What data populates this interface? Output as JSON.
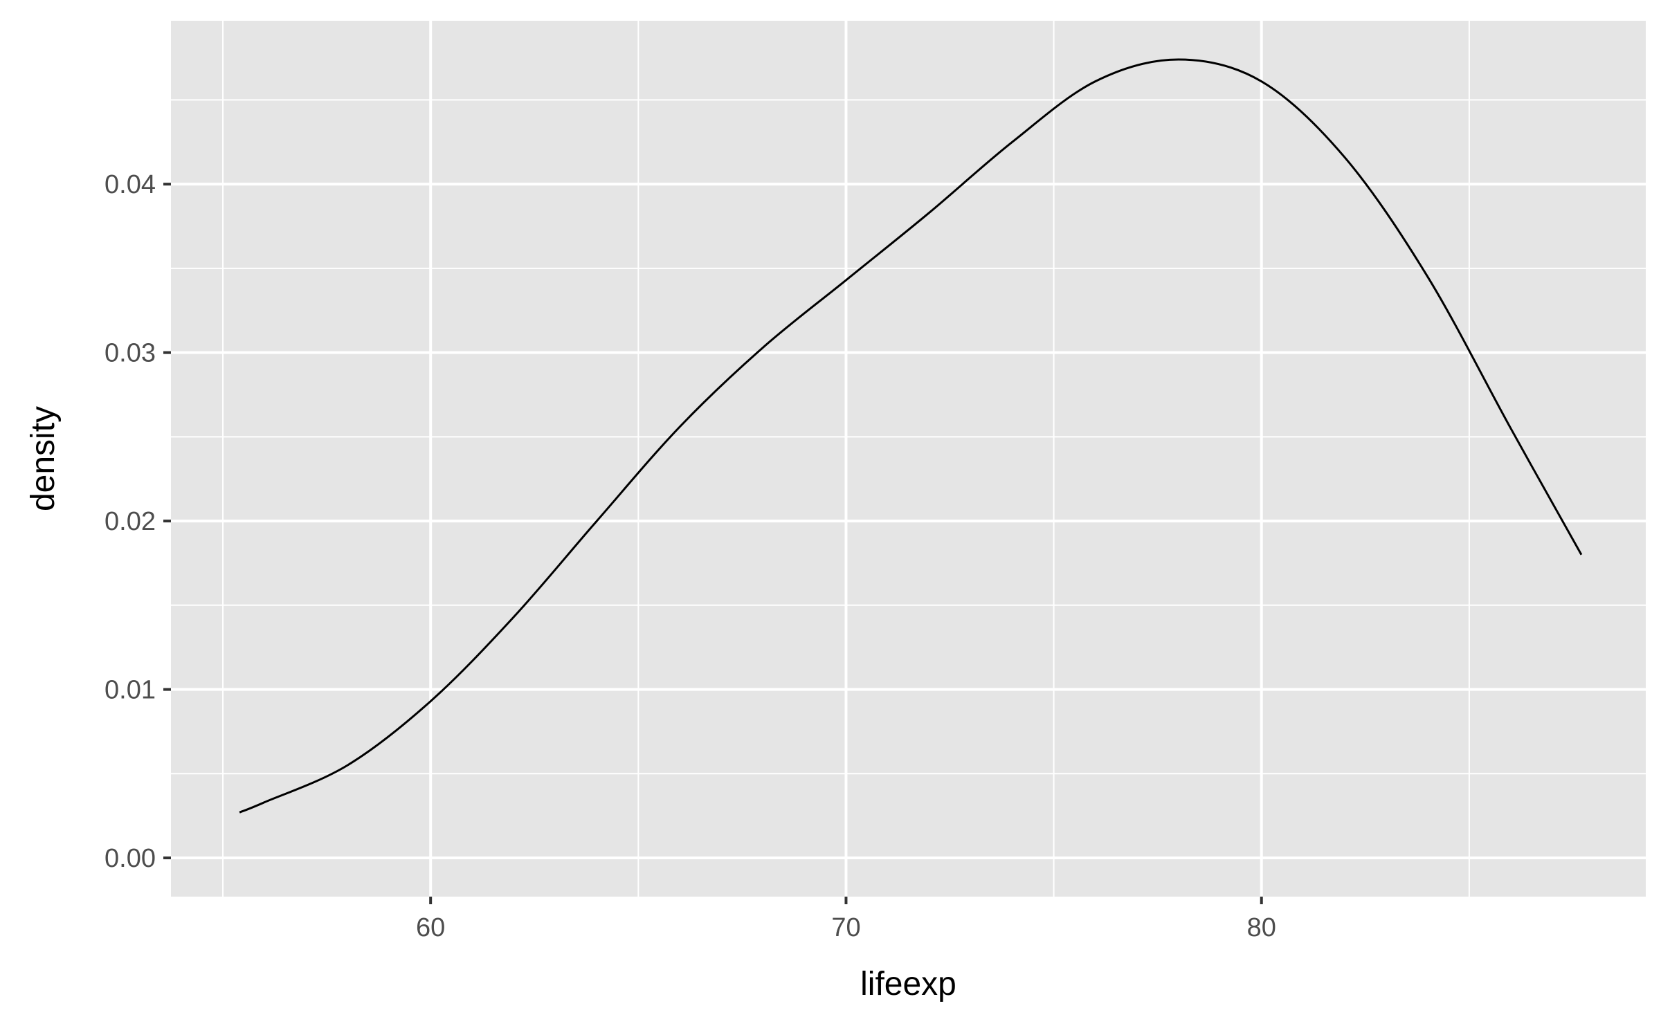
{
  "chart_data": {
    "type": "line",
    "title": "",
    "xlabel": "lifeexp",
    "ylabel": "density",
    "xlim": [
      53.75,
      89.25
    ],
    "ylim": [
      -0.0023,
      0.0497
    ],
    "x_ticks": [
      60,
      70,
      80
    ],
    "x_tick_labels": [
      "60",
      "70",
      "80"
    ],
    "x_minor_ticks": [
      55,
      65,
      75,
      85
    ],
    "y_ticks": [
      0.0,
      0.01,
      0.02,
      0.03,
      0.04
    ],
    "y_tick_labels": [
      "0.00",
      "0.01",
      "0.02",
      "0.03",
      "0.04"
    ],
    "y_minor_ticks": [
      0.005,
      0.015,
      0.025,
      0.035,
      0.045
    ],
    "grid": true,
    "legend": "none",
    "colors": {
      "panel_background": "#e5e5e5",
      "grid_line": "#ffffff",
      "series_line": "#000000",
      "tick_label": "#4d4d4d",
      "axis_title": "#000000"
    },
    "series": [
      {
        "x": [
          55.4,
          56.0,
          58.0,
          60.0,
          62.0,
          64.0,
          66.0,
          68.0,
          70.0,
          72.0,
          74.0,
          76.0,
          78.0,
          80.0,
          82.0,
          84.0,
          86.0,
          87.7
        ],
        "values": [
          0.0027,
          0.0033,
          0.0055,
          0.0093,
          0.0143,
          0.02,
          0.0256,
          0.0303,
          0.0343,
          0.0383,
          0.0425,
          0.0461,
          0.0474,
          0.0461,
          0.0416,
          0.0345,
          0.0255,
          0.018
        ]
      }
    ]
  }
}
